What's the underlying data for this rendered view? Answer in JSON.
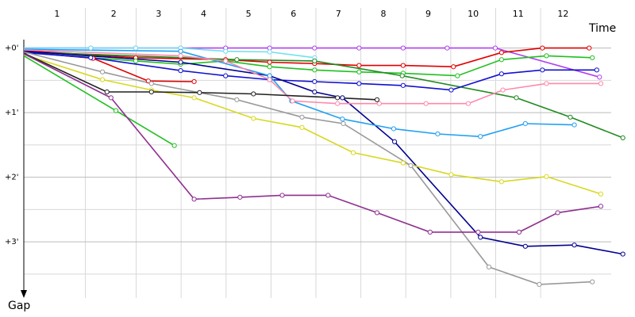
{
  "chart_data": {
    "type": "line",
    "x_label": "Time",
    "y_label": "Gap",
    "xlim": [
      0,
      13.6
    ],
    "ylim": [
      -0.4,
      3.87
    ],
    "xticks": [
      {
        "value": 0.74,
        "label": "1"
      },
      2,
      3,
      4,
      5,
      6,
      7,
      8,
      9,
      10,
      11,
      12
    ],
    "yticks": [
      {
        "value": 0,
        "label": "+0'"
      },
      {
        "value": 1,
        "label": "+1'"
      },
      {
        "value": 2,
        "label": "+2'"
      },
      {
        "value": 3,
        "label": "+3'"
      }
    ],
    "y_minor_grid": [
      0.5,
      1.5,
      2.5,
      3.5
    ],
    "grid": true,
    "series": [
      {
        "color": "#b040f0",
        "x": [
          0,
          1.49,
          2.49,
          3.49,
          4.49,
          5.47,
          6.47,
          7.46,
          8.44,
          9.42,
          10.49,
          12.81
        ],
        "values": [
          0,
          0,
          0,
          0,
          0,
          0,
          0,
          0,
          0,
          0,
          0,
          0.45
        ]
      },
      {
        "color": "#70e0f0",
        "x": [
          0,
          1.49,
          2.49,
          3.49,
          4.49,
          5.47,
          6.47
        ],
        "values": [
          0,
          0,
          0,
          0,
          0.05,
          0.06,
          0.15
        ]
      },
      {
        "color": "#e00000",
        "x": [
          0,
          2.49,
          4.49,
          5.47,
          6.47,
          7.46,
          8.44,
          9.56,
          10.63,
          11.54,
          12.58
        ],
        "values": [
          0.04,
          0.15,
          0.18,
          0.22,
          0.24,
          0.27,
          0.27,
          0.29,
          0.07,
          0,
          0
        ]
      },
      {
        "color": "#e00000",
        "x": [
          0,
          1.54,
          2.77,
          3.79
        ],
        "values": [
          0.06,
          0.16,
          0.51,
          0.52
        ]
      },
      {
        "color": "#20c020",
        "x": [
          0,
          2.49,
          3.49,
          4.49,
          5.47,
          6.47,
          7.46,
          8.44,
          9.65,
          10.63,
          11.63,
          12.65
        ],
        "values": [
          0.07,
          0.2,
          0.25,
          0.2,
          0.29,
          0.34,
          0.37,
          0.39,
          0.43,
          0.18,
          0.12,
          0.15
        ]
      },
      {
        "color": "#208a20",
        "x": [
          0,
          4.74,
          6.47,
          8.42,
          10.96,
          12.16,
          13.33
        ],
        "values": [
          0.06,
          0.18,
          0.2,
          0.43,
          0.77,
          1.07,
          1.39
        ]
      },
      {
        "color": "#20c020",
        "x": [
          0,
          2.05,
          3.35
        ],
        "values": [
          0.12,
          0.97,
          1.51
        ]
      },
      {
        "color": "#1010d0",
        "x": [
          0,
          1.49,
          3.49,
          4.49,
          5.47,
          6.47,
          7.46,
          8.44,
          9.51,
          10.63,
          11.54,
          12.75
        ],
        "values": [
          0.07,
          0.15,
          0.35,
          0.43,
          0.49,
          0.52,
          0.55,
          0.58,
          0.65,
          0.4,
          0.34,
          0.34
        ]
      },
      {
        "color": "#000090",
        "x": [
          0,
          3.49,
          5.47,
          6.47,
          7.09,
          8.25,
          10.16,
          11.16,
          12.25,
          13.33
        ],
        "values": [
          0.05,
          0.22,
          0.43,
          0.68,
          0.77,
          1.45,
          2.93,
          3.07,
          3.05,
          3.19
        ]
      },
      {
        "color": "#20a0f0",
        "x": [
          0,
          3.49,
          5.47,
          5.96,
          7.09,
          8.23,
          9.21,
          10.16,
          11.16,
          12.25
        ],
        "values": [
          0.02,
          0.05,
          0.43,
          0.82,
          1.1,
          1.25,
          1.33,
          1.37,
          1.17,
          1.19
        ]
      },
      {
        "color": "#ff88aa",
        "x": [
          0,
          3.49,
          4.49,
          5.47,
          5.98,
          6.98,
          7.91,
          8.95,
          9.89,
          10.66,
          11.63,
          12.84
        ],
        "values": [
          0.03,
          0.12,
          0.2,
          0.49,
          0.82,
          0.86,
          0.86,
          0.86,
          0.86,
          0.65,
          0.55,
          0.55
        ]
      },
      {
        "color": "#d8d820",
        "x": [
          0,
          1.75,
          2.84,
          3.79,
          5.11,
          6.19,
          7.33,
          8.44,
          9.51,
          10.63,
          11.63,
          12.84
        ],
        "values": [
          0.1,
          0.49,
          0.65,
          0.77,
          1.09,
          1.23,
          1.62,
          1.78,
          1.96,
          2.07,
          1.99,
          2.26
        ]
      },
      {
        "color": "#999999",
        "x": [
          0,
          1.75,
          2.84,
          4.74,
          6.19,
          7.11,
          8.61,
          10.35,
          11.47,
          12.65
        ],
        "values": [
          0.06,
          0.37,
          0.55,
          0.8,
          1.07,
          1.17,
          1.82,
          3.39,
          3.66,
          3.62
        ]
      },
      {
        "color": "#222222",
        "x": [
          0,
          1.85,
          2.84,
          3.91,
          5.11,
          6.98,
          7.86
        ],
        "values": [
          0.08,
          0.68,
          0.68,
          0.69,
          0.71,
          0.77,
          0.8
        ]
      },
      {
        "color": "#903090",
        "x": [
          0,
          1.94,
          3.79,
          4.81,
          5.75,
          6.77,
          7.86,
          9.04,
          10.11,
          11.02,
          11.88,
          12.84
        ],
        "values": [
          0.09,
          0.77,
          2.34,
          2.31,
          2.28,
          2.28,
          2.55,
          2.85,
          2.85,
          2.85,
          2.55,
          2.45
        ]
      }
    ]
  }
}
